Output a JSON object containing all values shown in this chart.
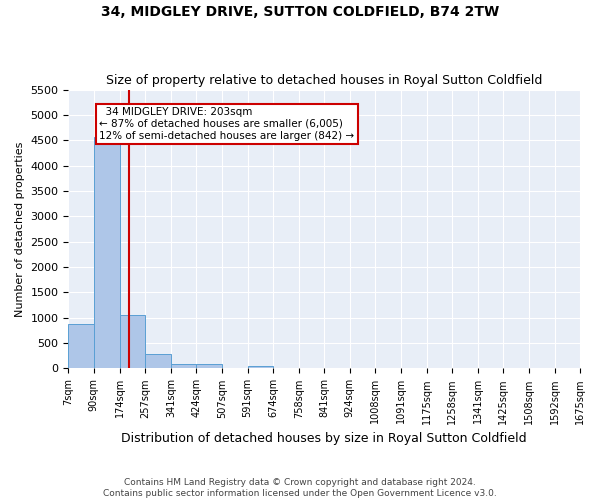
{
  "title": "34, MIDGLEY DRIVE, SUTTON COLDFIELD, B74 2TW",
  "subtitle": "Size of property relative to detached houses in Royal Sutton Coldfield",
  "xlabel": "Distribution of detached houses by size in Royal Sutton Coldfield",
  "ylabel": "Number of detached properties",
  "footer_line1": "Contains HM Land Registry data © Crown copyright and database right 2024.",
  "footer_line2": "Contains public sector information licensed under the Open Government Licence v3.0.",
  "annotation_title": "34 MIDGLEY DRIVE: 203sqm",
  "annotation_line1": "← 87% of detached houses are smaller (6,005)",
  "annotation_line2": "12% of semi-detached houses are larger (842) →",
  "property_size": 203,
  "bar_color": "#aec6e8",
  "bar_edge_color": "#5a9fd4",
  "vline_color": "#cc0000",
  "annotation_box_edge_color": "#cc0000",
  "bg_color": "#e8eef7",
  "grid_color": "#ffffff",
  "bin_edges": [
    7,
    90,
    174,
    257,
    341,
    424,
    507,
    591,
    674,
    758,
    841,
    924,
    1008,
    1091,
    1175,
    1258,
    1341,
    1425,
    1508,
    1592,
    1675
  ],
  "bin_labels": [
    "7sqm",
    "90sqm",
    "174sqm",
    "257sqm",
    "341sqm",
    "424sqm",
    "507sqm",
    "591sqm",
    "674sqm",
    "758sqm",
    "841sqm",
    "924sqm",
    "1008sqm",
    "1091sqm",
    "1175sqm",
    "1258sqm",
    "1341sqm",
    "1425sqm",
    "1508sqm",
    "1592sqm",
    "1675sqm"
  ],
  "bar_heights": [
    880,
    4560,
    1060,
    290,
    80,
    80,
    0,
    50,
    0,
    0,
    0,
    0,
    0,
    0,
    0,
    0,
    0,
    0,
    0,
    0
  ],
  "ylim": [
    0,
    5500
  ],
  "yticks": [
    0,
    500,
    1000,
    1500,
    2000,
    2500,
    3000,
    3500,
    4000,
    4500,
    5000,
    5500
  ]
}
